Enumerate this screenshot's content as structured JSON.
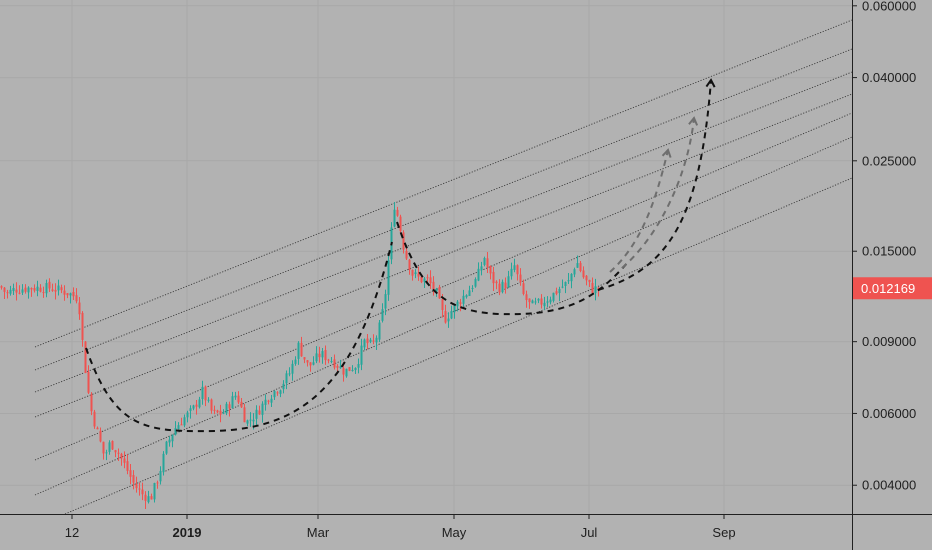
{
  "chart_data": {
    "type": "candlestick",
    "title": "",
    "y_scale": "log",
    "ylim": [
      0.0034,
      0.062
    ],
    "x_ticks": [
      "12",
      "2019",
      "Mar",
      "May",
      "Jul",
      "Sep"
    ],
    "y_ticks": [
      "0.060000",
      "0.040000",
      "0.025000",
      "0.015000",
      "0.009000",
      "0.006000",
      "0.004000"
    ],
    "last_price": "0.012169",
    "colors": {
      "background": "#b2b2b2",
      "up": "#26a69a",
      "down": "#ef5350",
      "last_price_badge": "#ef5350",
      "channel_lines": "#3a3a3a",
      "projection_main": "#111111",
      "projection_alt": "#6e6e6e"
    },
    "annotations": {
      "channel_lines": 7,
      "rounding_bottom_arcs": 2,
      "projection_arrows": 3
    },
    "series": {
      "name": "",
      "anchors": [
        [
          0,
          0.0123
        ],
        [
          6,
          0.0118
        ],
        [
          14,
          0.0121
        ],
        [
          30,
          0.0122
        ],
        [
          50,
          0.0122
        ],
        [
          66,
          0.0119
        ],
        [
          78,
          0.0115
        ],
        [
          82,
          0.009
        ],
        [
          86,
          0.0073
        ],
        [
          90,
          0.0062
        ],
        [
          96,
          0.0055
        ],
        [
          104,
          0.0047
        ],
        [
          110,
          0.0051
        ],
        [
          118,
          0.0048
        ],
        [
          126,
          0.0044
        ],
        [
          134,
          0.004
        ],
        [
          142,
          0.0038
        ],
        [
          150,
          0.0037
        ],
        [
          158,
          0.0042
        ],
        [
          166,
          0.005
        ],
        [
          174,
          0.0055
        ],
        [
          182,
          0.0058
        ],
        [
          192,
          0.0061
        ],
        [
          202,
          0.0068
        ],
        [
          212,
          0.006
        ],
        [
          222,
          0.006
        ],
        [
          236,
          0.0067
        ],
        [
          246,
          0.0057
        ],
        [
          256,
          0.006
        ],
        [
          268,
          0.0066
        ],
        [
          280,
          0.007
        ],
        [
          290,
          0.0076
        ],
        [
          298,
          0.0088
        ],
        [
          308,
          0.0078
        ],
        [
          320,
          0.0084
        ],
        [
          332,
          0.0081
        ],
        [
          344,
          0.0076
        ],
        [
          356,
          0.0079
        ],
        [
          364,
          0.009
        ],
        [
          372,
          0.0088
        ],
        [
          378,
          0.0095
        ],
        [
          384,
          0.0112
        ],
        [
          390,
          0.016
        ],
        [
          394,
          0.0195
        ],
        [
          398,
          0.018
        ],
        [
          404,
          0.015
        ],
        [
          412,
          0.0132
        ],
        [
          420,
          0.0128
        ],
        [
          428,
          0.0127
        ],
        [
          436,
          0.0118
        ],
        [
          444,
          0.0102
        ],
        [
          452,
          0.0108
        ],
        [
          460,
          0.0114
        ],
        [
          468,
          0.012
        ],
        [
          476,
          0.0128
        ],
        [
          484,
          0.0145
        ],
        [
          490,
          0.013
        ],
        [
          498,
          0.0122
        ],
        [
          506,
          0.0125
        ],
        [
          514,
          0.0138
        ],
        [
          522,
          0.0118
        ],
        [
          530,
          0.011
        ],
        [
          540,
          0.0112
        ],
        [
          550,
          0.0116
        ],
        [
          560,
          0.0122
        ],
        [
          568,
          0.0126
        ],
        [
          576,
          0.0142
        ],
        [
          584,
          0.0128
        ],
        [
          592,
          0.0121
        ],
        [
          598,
          0.01217
        ]
      ]
    }
  }
}
